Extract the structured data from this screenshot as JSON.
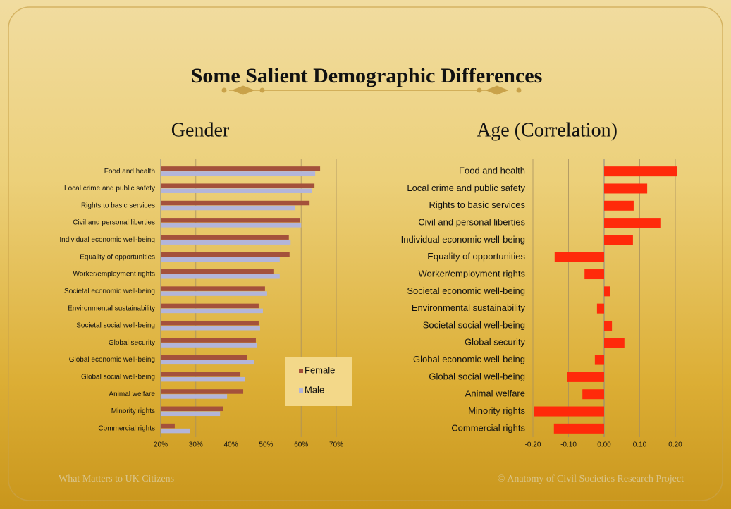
{
  "title": "Some Salient Demographic Differences",
  "footer": {
    "left": "What Matters to UK Citizens",
    "right": "© Anatomy of Civil Societies Research Project"
  },
  "chart_data": [
    {
      "type": "bar",
      "horizontal": true,
      "title": "Gender",
      "categories": [
        "Food and health",
        "Local crime and public safety",
        "Rights to basic services",
        "Civil and personal liberties",
        "Individual economic well-being",
        "Equality of opportunities",
        "Worker/employment rights",
        "Societal economic well-being",
        "Environmental sustainability",
        "Societal social well-being",
        "Global security",
        "Global economic well-being",
        "Global social well-being",
        "Animal welfare",
        "Minority rights",
        "Commercial rights"
      ],
      "series": [
        {
          "name": "Female",
          "color": "#a4513b",
          "values": [
            65.4,
            63.8,
            62.4,
            59.6,
            56.5,
            56.7,
            52.1,
            49.7,
            47.9,
            47.9,
            47.1,
            44.5,
            42.7,
            43.5,
            37.7,
            24.0
          ]
        },
        {
          "name": "Male",
          "color": "#b3b5d9",
          "values": [
            64.0,
            63.0,
            58.2,
            60.0,
            57.0,
            53.9,
            53.9,
            50.3,
            49.1,
            48.3,
            47.5,
            46.5,
            44.1,
            38.9,
            36.9,
            28.4
          ]
        }
      ],
      "xlim": [
        20,
        70
      ],
      "xticks": [
        {
          "value": 20,
          "label": "20%"
        },
        {
          "value": 30,
          "label": "30%"
        },
        {
          "value": 40,
          "label": "40%"
        },
        {
          "value": 50,
          "label": "50%"
        },
        {
          "value": 60,
          "label": "60%"
        },
        {
          "value": 70,
          "label": "70%"
        }
      ],
      "grid": true,
      "legend": "lower right"
    },
    {
      "type": "bar",
      "horizontal": true,
      "title": "Age (Correlation)",
      "categories": [
        "Food and health",
        "Local crime and public safety",
        "Rights to basic services",
        "Civil and personal liberties",
        "Individual economic well-being",
        "Equality of opportunities",
        "Worker/employment rights",
        "Societal economic well-being",
        "Environmental sustainability",
        "Societal social well-being",
        "Global security",
        "Global economic well-being",
        "Global social well-being",
        "Animal welfare",
        "Minority rights",
        "Commercial rights"
      ],
      "values": [
        0.204,
        0.121,
        0.083,
        0.158,
        0.081,
        -0.139,
        -0.055,
        0.016,
        -0.02,
        0.022,
        0.057,
        -0.026,
        -0.103,
        -0.061,
        -0.198,
        -0.141
      ],
      "color": "#ff2a0a",
      "xlim": [
        -0.2,
        0.2
      ],
      "xticks": [
        {
          "value": -0.2,
          "label": "-0.20"
        },
        {
          "value": -0.1,
          "label": "-0.10"
        },
        {
          "value": 0,
          "label": "0.00"
        },
        {
          "value": 0.1,
          "label": "0.10"
        },
        {
          "value": 0.2,
          "label": "0.20"
        }
      ],
      "grid": true
    }
  ]
}
